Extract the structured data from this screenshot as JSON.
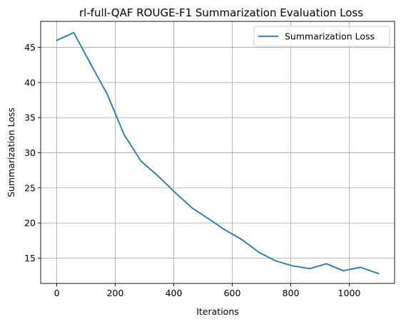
{
  "chart_data": {
    "type": "line",
    "title": "rl-full-QAF ROUGE-F1 Summarization Evaluation Loss",
    "xlabel": "Iterations",
    "ylabel": "Summarization Loss",
    "xlim": [
      -55,
      1155
    ],
    "ylim": [
      11.4,
      48.7
    ],
    "xticks": [
      0,
      200,
      400,
      600,
      800,
      1000
    ],
    "yticks": [
      15,
      20,
      25,
      30,
      35,
      40,
      45
    ],
    "grid": true,
    "legend_position": "top-right",
    "series": [
      {
        "name": "Summarization Loss",
        "color": "#1f77b4",
        "x": [
          0,
          58,
          115,
          173,
          230,
          288,
          346,
          403,
          461,
          519,
          576,
          634,
          692,
          749,
          807,
          865,
          922,
          980,
          1038,
          1100
        ],
        "y": [
          46.0,
          47.1,
          42.7,
          38.3,
          32.6,
          28.8,
          26.7,
          24.4,
          22.2,
          20.6,
          19.0,
          17.6,
          15.8,
          14.6,
          13.9,
          13.5,
          14.2,
          13.2,
          13.7,
          12.8
        ]
      }
    ]
  }
}
